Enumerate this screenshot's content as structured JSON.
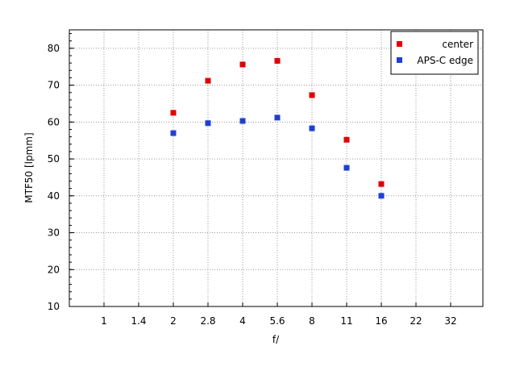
{
  "chart_data": {
    "type": "scatter",
    "title": "",
    "xlabel": "f/",
    "ylabel": "MTF50 [lpmm]",
    "x_scale": "log2 (f-stop sequence)",
    "x_ticks": [
      "1",
      "1.4",
      "2",
      "2.8",
      "4",
      "5.6",
      "8",
      "11",
      "16",
      "22",
      "32"
    ],
    "y_ticks": [
      10,
      20,
      30,
      40,
      50,
      60,
      70,
      80
    ],
    "ylim": [
      10,
      85
    ],
    "grid": true,
    "legend_position": "top-right",
    "series": [
      {
        "name": "center",
        "color": "#e00000",
        "marker": "square",
        "x": [
          "2",
          "2.8",
          "4",
          "5.6",
          "8",
          "11",
          "16"
        ],
        "y": [
          62.5,
          71.2,
          75.6,
          76.6,
          67.3,
          55.2,
          43.2
        ]
      },
      {
        "name": "APS-C edge",
        "color": "#1f3fd1",
        "marker": "square",
        "x": [
          "2",
          "2.8",
          "4",
          "5.6",
          "8",
          "11",
          "16"
        ],
        "y": [
          57.0,
          59.7,
          60.3,
          61.2,
          58.3,
          47.6,
          40.0
        ]
      }
    ]
  }
}
